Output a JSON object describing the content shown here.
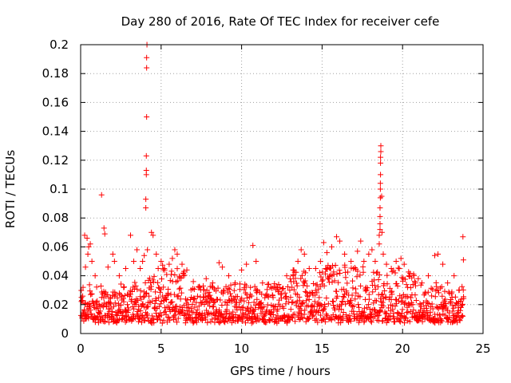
{
  "chart_data": {
    "type": "scatter",
    "title": "Day 280 of 2016, Rate Of TEC Index for receiver cefe",
    "xlabel": "GPS time / hours",
    "ylabel": "ROTI / TECUs",
    "xlim": [
      0,
      25
    ],
    "ylim": [
      0,
      0.2
    ],
    "xticks": [
      0,
      5,
      10,
      15,
      20,
      25
    ],
    "xtick_labels": [
      "0",
      "5",
      "10",
      "15",
      "20",
      "25"
    ],
    "yticks": [
      0,
      0.02,
      0.04,
      0.06,
      0.08,
      0.1,
      0.12,
      0.14,
      0.16,
      0.18,
      0.2
    ],
    "ytick_labels": [
      "0",
      "0.02",
      "0.04",
      "0.06",
      "0.08",
      "0.1",
      "0.12",
      "0.14",
      "0.16",
      "0.18",
      "0.2"
    ],
    "grid": true,
    "marker": "+",
    "marker_color": "#ff0000",
    "series": [
      {
        "name": "ROTI",
        "points": [
          [
            0.05,
            0.025
          ],
          [
            0.15,
            0.032
          ],
          [
            0.3,
            0.046
          ],
          [
            0.45,
            0.055
          ],
          [
            0.6,
            0.062
          ],
          [
            0.25,
            0.068
          ],
          [
            0.4,
            0.066
          ],
          [
            0.5,
            0.06
          ],
          [
            0.7,
            0.05
          ],
          [
            0.9,
            0.04
          ],
          [
            1.3,
            0.096
          ],
          [
            1.45,
            0.073
          ],
          [
            1.5,
            0.069
          ],
          [
            1.7,
            0.046
          ],
          [
            2.0,
            0.055
          ],
          [
            2.1,
            0.05
          ],
          [
            2.4,
            0.04
          ],
          [
            2.8,
            0.045
          ],
          [
            3.1,
            0.068
          ],
          [
            3.3,
            0.05
          ],
          [
            3.5,
            0.058
          ],
          [
            3.7,
            0.045
          ],
          [
            3.85,
            0.05
          ],
          [
            3.95,
            0.054
          ],
          [
            4.05,
            0.087
          ],
          [
            4.05,
            0.093
          ],
          [
            4.08,
            0.11
          ],
          [
            4.08,
            0.113
          ],
          [
            4.08,
            0.123
          ],
          [
            4.1,
            0.15
          ],
          [
            4.1,
            0.184
          ],
          [
            4.1,
            0.191
          ],
          [
            4.12,
            0.2
          ],
          [
            4.15,
            0.058
          ],
          [
            4.4,
            0.07
          ],
          [
            4.5,
            0.068
          ],
          [
            4.7,
            0.055
          ],
          [
            5.0,
            0.05
          ],
          [
            5.2,
            0.045
          ],
          [
            5.5,
            0.048
          ],
          [
            5.7,
            0.052
          ],
          [
            5.85,
            0.058
          ],
          [
            6.0,
            0.055
          ],
          [
            6.3,
            0.048
          ],
          [
            6.6,
            0.044
          ],
          [
            7.0,
            0.036
          ],
          [
            7.4,
            0.032
          ],
          [
            7.8,
            0.038
          ],
          [
            8.2,
            0.035
          ],
          [
            8.6,
            0.049
          ],
          [
            8.8,
            0.046
          ],
          [
            9.2,
            0.04
          ],
          [
            9.6,
            0.035
          ],
          [
            10.0,
            0.044
          ],
          [
            10.3,
            0.048
          ],
          [
            10.7,
            0.061
          ],
          [
            10.9,
            0.05
          ],
          [
            11.3,
            0.035
          ],
          [
            11.8,
            0.032
          ],
          [
            12.3,
            0.034
          ],
          [
            12.8,
            0.04
          ],
          [
            13.2,
            0.044
          ],
          [
            13.5,
            0.05
          ],
          [
            13.7,
            0.058
          ],
          [
            13.9,
            0.055
          ],
          [
            14.2,
            0.045
          ],
          [
            14.6,
            0.045
          ],
          [
            14.9,
            0.05
          ],
          [
            15.1,
            0.063
          ],
          [
            15.3,
            0.056
          ],
          [
            15.6,
            0.06
          ],
          [
            15.9,
            0.067
          ],
          [
            16.1,
            0.064
          ],
          [
            16.4,
            0.055
          ],
          [
            16.8,
            0.05
          ],
          [
            17.2,
            0.057
          ],
          [
            17.4,
            0.064
          ],
          [
            17.6,
            0.05
          ],
          [
            17.9,
            0.055
          ],
          [
            18.1,
            0.058
          ],
          [
            18.3,
            0.05
          ],
          [
            18.55,
            0.062
          ],
          [
            18.55,
            0.068
          ],
          [
            18.6,
            0.072
          ],
          [
            18.6,
            0.076
          ],
          [
            18.6,
            0.081
          ],
          [
            18.6,
            0.087
          ],
          [
            18.62,
            0.094
          ],
          [
            18.62,
            0.1
          ],
          [
            18.62,
            0.104
          ],
          [
            18.63,
            0.11
          ],
          [
            18.63,
            0.118
          ],
          [
            18.63,
            0.122
          ],
          [
            18.65,
            0.126
          ],
          [
            18.65,
            0.13
          ],
          [
            18.7,
            0.095
          ],
          [
            18.72,
            0.07
          ],
          [
            18.8,
            0.055
          ],
          [
            19.0,
            0.048
          ],
          [
            19.3,
            0.045
          ],
          [
            19.6,
            0.05
          ],
          [
            19.9,
            0.052
          ],
          [
            20.1,
            0.048
          ],
          [
            20.4,
            0.04
          ],
          [
            20.8,
            0.035
          ],
          [
            21.2,
            0.035
          ],
          [
            21.6,
            0.04
          ],
          [
            22.0,
            0.054
          ],
          [
            22.2,
            0.055
          ],
          [
            22.5,
            0.048
          ],
          [
            22.8,
            0.035
          ],
          [
            23.2,
            0.04
          ],
          [
            23.5,
            0.03
          ],
          [
            23.75,
            0.067
          ],
          [
            23.78,
            0.051
          ]
        ],
        "noise_band": {
          "description": "dense cloud of ROTI samples between 0.005 and about 0.04 TECU/s over the full day",
          "x_range": [
            0,
            23.8
          ],
          "baseline": 0.015,
          "spread": 0.025
        }
      }
    ]
  }
}
